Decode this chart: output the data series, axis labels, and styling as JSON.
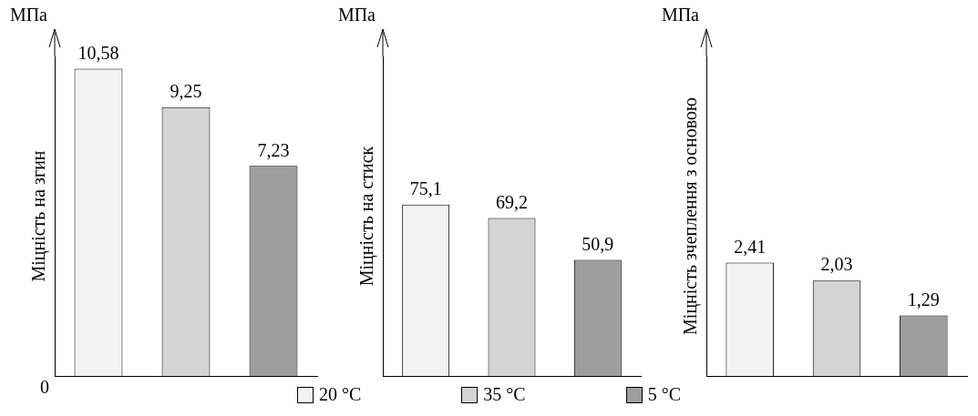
{
  "chart_data": [
    {
      "type": "bar",
      "ylabel": "Міцність на згин",
      "annotations": [
        "МПа",
        "0"
      ],
      "categories": [
        null,
        null,
        null
      ],
      "ylim": [
        0,
        11
      ],
      "tick_labels": false,
      "values": [
        10.58,
        9.25,
        7.23
      ],
      "value_labels": [
        "10,58",
        "9,25",
        "7,23"
      ],
      "colors": [
        "#f2f2f2",
        "#d4d4d4",
        "#9e9e9e"
      ]
    },
    {
      "type": "bar",
      "ylabel": "Міцність на стиск",
      "annotations": [
        "МПа",
        "20 °C",
        "35 °C",
        "5 °C"
      ],
      "categories": [
        null,
        null,
        null
      ],
      "ylim": [
        0,
        140
      ],
      "tick_labels": false,
      "values": [
        75.1,
        69.2,
        50.9
      ],
      "value_labels": [
        "75,1",
        "69,2",
        "50,9"
      ],
      "colors": [
        "#f2f2f2",
        "#d4d4d4",
        "#9e9e9e"
      ]
    },
    {
      "type": "bar",
      "ylabel": "Міцність зчеплення з основою",
      "annotations": [
        "МПа"
      ],
      "categories": [
        null,
        null,
        null
      ],
      "ylim": [
        0,
        6.8
      ],
      "tick_labels": false,
      "values": [
        2.41,
        2.03,
        1.29
      ],
      "value_labels": [
        "2,41",
        "2,03",
        "1,29"
      ],
      "colors": [
        "#f2f2f2",
        "#d4d4d4",
        "#9e9e9e"
      ]
    }
  ]
}
